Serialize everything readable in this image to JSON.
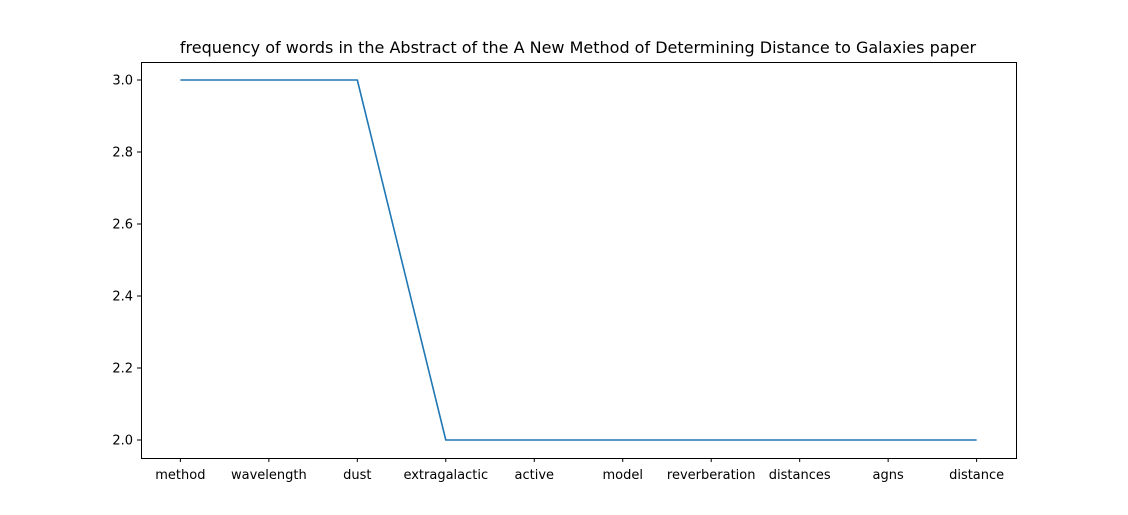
{
  "chart_data": {
    "type": "line",
    "title": "frequency of words in the Abstract of the A New Method of Determining Distance to Galaxies paper",
    "xlabel": "",
    "ylabel": "",
    "categories": [
      "method",
      "wavelength",
      "dust",
      "extragalactic",
      "active",
      "model",
      "reverberation",
      "distances",
      "agns",
      "distance"
    ],
    "series": [
      {
        "values": [
          3,
          3,
          3,
          2,
          2,
          2,
          2,
          2,
          2,
          2
        ],
        "color": "#1f77b4"
      }
    ],
    "ylim": [
      1.95,
      3.05
    ],
    "yticks": [
      "2.0",
      "2.2",
      "2.4",
      "2.6",
      "2.8",
      "3.0"
    ],
    "grid": false,
    "legend": "none"
  }
}
